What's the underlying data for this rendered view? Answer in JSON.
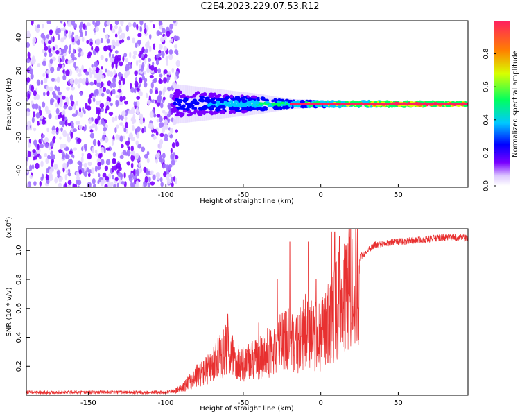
{
  "title": "C2E4.2023.229.07.53.R12",
  "chart_data": [
    {
      "type": "heatmap",
      "name": "spectrogram",
      "xlabel": "Height of straight line (km)",
      "ylabel": "Frequency (Hz)",
      "xlim": [
        -190,
        95
      ],
      "ylim": [
        -50,
        50
      ],
      "xticks": [
        -150,
        -100,
        -50,
        0,
        50
      ],
      "yticks": [
        -40,
        -20,
        0,
        20,
        40
      ],
      "colorbar": {
        "label": "Normalized spectral amplitude",
        "range": [
          0,
          1
        ],
        "ticks": [
          "0.0",
          "0.2",
          "0.4",
          "0.6",
          "0.8"
        ],
        "colors": [
          "#ffffff",
          "#7a00ff",
          "#0000ff",
          "#00c8ff",
          "#00ff60",
          "#d8ff00",
          "#ff8000",
          "#ff2060"
        ]
      },
      "features": {
        "noise_region_x": [
          -190,
          -95
        ],
        "signal_band_center_hz": 0,
        "signal_band_halfwidth_hz": [
          [
            -95,
            8
          ],
          [
            -40,
            4
          ],
          [
            -20,
            2
          ],
          [
            0,
            1.5
          ],
          [
            90,
            1
          ]
        ]
      }
    },
    {
      "type": "line",
      "name": "snr",
      "xlabel": "Height of straight line (km)",
      "ylabel": "SNR (10 * v/v)",
      "scale_label": "(x10",
      "scale_exponent": "4",
      "scale_suffix": ")",
      "xlim": [
        -190,
        95
      ],
      "ylim": [
        0,
        1.15
      ],
      "xticks": [
        -150,
        -100,
        -50,
        0,
        50
      ],
      "yticks": [
        "0.2",
        "0.4",
        "0.6",
        "0.8",
        "1.0"
      ],
      "ytick_values": [
        0.2,
        0.4,
        0.6,
        0.8,
        1.0
      ],
      "color": "#e83030",
      "x": [
        -190,
        -100,
        -95,
        -90,
        -85,
        -80,
        -75,
        -70,
        -65,
        -60,
        -55,
        -50,
        -45,
        -40,
        -35,
        -30,
        -25,
        -20,
        -15,
        -10,
        -5,
        0,
        5,
        10,
        15,
        20,
        25,
        30,
        35,
        40,
        50,
        60,
        70,
        80,
        90,
        95
      ],
      "y": [
        0.02,
        0.02,
        0.03,
        0.05,
        0.1,
        0.15,
        0.18,
        0.22,
        0.3,
        0.35,
        0.28,
        0.25,
        0.26,
        0.28,
        0.32,
        0.35,
        0.42,
        0.45,
        0.4,
        0.5,
        0.45,
        0.45,
        0.55,
        0.65,
        0.82,
        0.88,
        0.95,
        1.0,
        1.04,
        1.05,
        1.06,
        1.07,
        1.08,
        1.09,
        1.09,
        1.08
      ],
      "spikes": [
        [
          -60,
          0.56
        ],
        [
          -40,
          0.5
        ],
        [
          -28,
          0.8
        ],
        [
          -20,
          1.06
        ],
        [
          -8,
          1.06
        ],
        [
          -3,
          0.8
        ],
        [
          7,
          1.13
        ],
        [
          9,
          1.13
        ],
        [
          12,
          1.1
        ]
      ]
    }
  ]
}
